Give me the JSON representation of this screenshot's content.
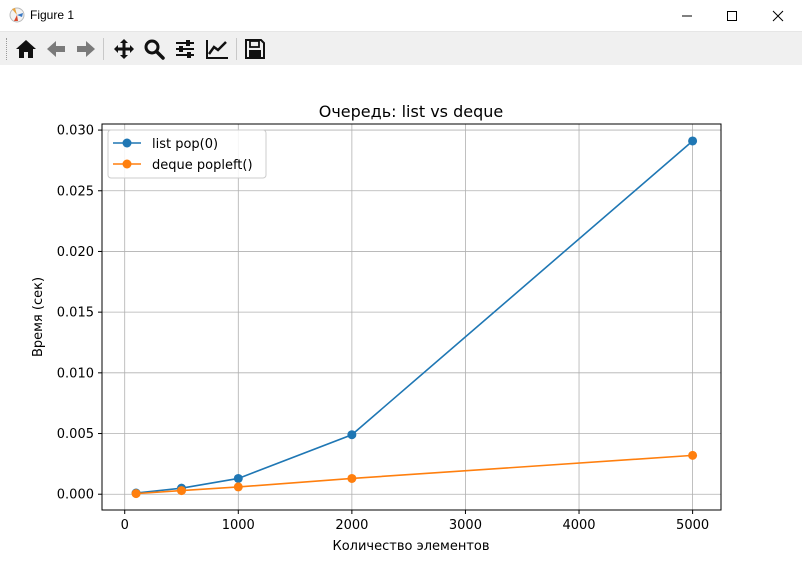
{
  "window": {
    "title": "Figure 1"
  },
  "toolbar": {
    "buttons": [
      "home-icon",
      "back-icon",
      "forward-icon",
      "pan-icon",
      "zoom-icon",
      "configure-icon",
      "edit-axis-icon",
      "save-icon"
    ]
  },
  "chart_data": {
    "type": "line",
    "title": "Очередь: list vs deque",
    "xlabel": "Количество элементов",
    "ylabel": "Время (сек)",
    "xlim": [
      -200,
      5250
    ],
    "ylim": [
      -0.0013,
      0.0305
    ],
    "x_ticks": [
      0,
      1000,
      2000,
      3000,
      4000,
      5000
    ],
    "x_tick_labels": [
      "0",
      "1000",
      "2000",
      "3000",
      "4000",
      "5000"
    ],
    "y_ticks": [
      0.0,
      0.005,
      0.01,
      0.015,
      0.02,
      0.025,
      0.03
    ],
    "y_tick_labels": [
      "0.000",
      "0.005",
      "0.010",
      "0.015",
      "0.020",
      "0.025",
      "0.030"
    ],
    "grid": true,
    "legend_position": "upper-left",
    "x": [
      100,
      500,
      1000,
      2000,
      5000
    ],
    "series": [
      {
        "name": "list pop(0)",
        "color": "#1f77b4",
        "values": [
          0.0001,
          0.0005,
          0.0013,
          0.0049,
          0.0291
        ]
      },
      {
        "name": "deque popleft()",
        "color": "#ff7f0e",
        "values": [
          5e-05,
          0.0003,
          0.0006,
          0.0013,
          0.0032
        ]
      }
    ]
  }
}
